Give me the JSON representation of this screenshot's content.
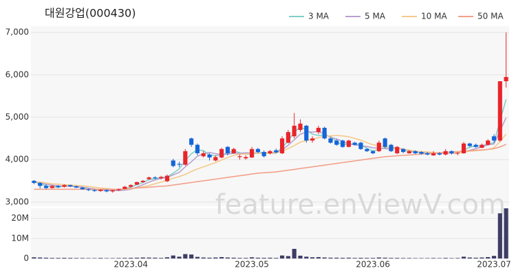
{
  "chart_data": {
    "type": "candlestick",
    "title": "대원강업(000430)",
    "watermark": "feature.enViewV.com",
    "legend": "top-right",
    "grid": true,
    "up_color": "#e8252b",
    "down_color": "#1565d8",
    "volume_color": "#3d3d66",
    "categories": [
      null,
      null,
      null,
      null,
      null,
      null,
      null,
      null,
      null,
      null,
      null,
      null,
      null,
      null,
      null,
      null,
      "2023.04",
      null,
      null,
      null,
      null,
      null,
      null,
      null,
      null,
      null,
      null,
      null,
      null,
      null,
      null,
      null,
      null,
      null,
      null,
      null,
      "2023.05",
      null,
      null,
      null,
      null,
      null,
      null,
      null,
      null,
      null,
      null,
      null,
      null,
      null,
      null,
      null,
      null,
      null,
      null,
      null,
      "2023.06",
      null,
      null,
      null,
      null,
      null,
      null,
      null,
      null,
      null,
      null,
      null,
      null,
      null,
      null,
      null,
      null,
      null,
      null,
      null,
      "2023.07",
      null,
      null
    ],
    "open": [
      3500,
      3450,
      3380,
      3330,
      3380,
      3360,
      3400,
      3370,
      3340,
      3300,
      3280,
      3260,
      3280,
      3250,
      3280,
      3310,
      3360,
      3410,
      3470,
      3540,
      3580,
      3560,
      3490,
      3980,
      3900,
      3880,
      4500,
      4350,
      4080,
      4120,
      3980,
      4050,
      4300,
      4150,
      4060,
      4030,
      4050,
      4250,
      4180,
      4150,
      4220,
      4150,
      4400,
      4550,
      4700,
      4800,
      4450,
      4650,
      4750,
      4500,
      4450,
      4450,
      4300,
      4400,
      4400,
      4250,
      4200,
      4200,
      4500,
      4350,
      4150,
      4250,
      4150,
      4200,
      4180,
      4150,
      4100,
      4150,
      4120,
      4200,
      4150,
      4150,
      4380,
      4350,
      4280,
      4350,
      4550,
      4450,
      5850
    ],
    "high": [
      3520,
      3470,
      3420,
      3400,
      3400,
      3420,
      3410,
      3390,
      3360,
      3320,
      3300,
      3300,
      3300,
      3290,
      3320,
      3380,
      3420,
      3480,
      3520,
      3600,
      3610,
      3620,
      3650,
      4020,
      3950,
      4250,
      4520,
      4380,
      4200,
      4150,
      4100,
      4280,
      4320,
      4280,
      4120,
      4100,
      4300,
      4280,
      4220,
      4230,
      4260,
      4550,
      4700,
      5100,
      4950,
      4820,
      4550,
      4800,
      4780,
      4520,
      4480,
      4470,
      4470,
      4420,
      4420,
      4270,
      4220,
      4450,
      4520,
      4370,
      4320,
      4270,
      4230,
      4220,
      4200,
      4180,
      4200,
      4180,
      4250,
      4220,
      4180,
      4420,
      4400,
      4380,
      4380,
      4480,
      4600,
      5850,
      7000
    ],
    "low": [
      3420,
      3320,
      3300,
      3320,
      3330,
      3340,
      3350,
      3330,
      3290,
      3260,
      3240,
      3240,
      3230,
      3220,
      3260,
      3300,
      3340,
      3400,
      3450,
      3520,
      3540,
      3530,
      3470,
      3820,
      3820,
      3860,
      4300,
      4100,
      4050,
      3980,
      3960,
      4030,
      4100,
      4140,
      4000,
      4000,
      4040,
      4150,
      4050,
      4120,
      4150,
      4130,
      4380,
      4500,
      4650,
      4400,
      4400,
      4600,
      4480,
      4380,
      4330,
      4280,
      4290,
      4330,
      4230,
      4180,
      4130,
      4180,
      4280,
      4180,
      4130,
      4150,
      4140,
      4130,
      4120,
      4100,
      4090,
      4100,
      4100,
      4120,
      4100,
      4140,
      4300,
      4280,
      4270,
      4330,
      4400,
      4420,
      5700
    ],
    "close": [
      3450,
      3380,
      3330,
      3380,
      3350,
      3400,
      3370,
      3340,
      3300,
      3280,
      3260,
      3290,
      3250,
      3280,
      3300,
      3360,
      3400,
      3470,
      3500,
      3580,
      3560,
      3590,
      3620,
      3850,
      3880,
      4200,
      4350,
      4150,
      4150,
      4050,
      4060,
      4250,
      4150,
      4250,
      4080,
      4060,
      4250,
      4180,
      4080,
      4200,
      4170,
      4500,
      4650,
      4800,
      4850,
      4450,
      4500,
      4750,
      4500,
      4400,
      4350,
      4300,
      4450,
      4350,
      4250,
      4200,
      4150,
      4400,
      4300,
      4200,
      4300,
      4180,
      4200,
      4150,
      4140,
      4120,
      4150,
      4120,
      4200,
      4150,
      4160,
      4380,
      4320,
      4300,
      4350,
      4450,
      4450,
      5850,
      5950
    ],
    "volume": [
      600000,
      500000,
      400000,
      300000,
      300000,
      350000,
      300000,
      250000,
      250000,
      200000,
      200000,
      300000,
      200000,
      200000,
      250000,
      300000,
      350000,
      400000,
      500000,
      450000,
      400000,
      300000,
      600000,
      1500000,
      900000,
      2200000,
      2000000,
      800000,
      500000,
      400000,
      500000,
      700000,
      500000,
      400000,
      300000,
      300000,
      600000,
      400000,
      350000,
      400000,
      300000,
      1500000,
      1200000,
      4800000,
      1400000,
      900000,
      600000,
      700000,
      500000,
      400000,
      400000,
      350000,
      400000,
      300000,
      350000,
      300000,
      300000,
      500000,
      400000,
      300000,
      300000,
      250000,
      250000,
      200000,
      200000,
      200000,
      250000,
      200000,
      300000,
      200000,
      250000,
      900000,
      500000,
      400000,
      500000,
      700000,
      1300000,
      22500000,
      25000000
    ],
    "series": [
      {
        "name": "3 MA",
        "color": "#7fd0c7",
        "values": [
          3480,
          3430,
          3380,
          3360,
          3350,
          3380,
          3370,
          3370,
          3340,
          3310,
          3280,
          3280,
          3270,
          3270,
          3280,
          3310,
          3350,
          3410,
          3460,
          3530,
          3550,
          3580,
          3590,
          3680,
          3780,
          3980,
          4140,
          4230,
          4210,
          4110,
          4090,
          4120,
          4150,
          4210,
          4160,
          4130,
          4130,
          4160,
          4170,
          4150,
          4150,
          4290,
          4440,
          4650,
          4770,
          4700,
          4600,
          4570,
          4580,
          4550,
          4420,
          4350,
          4370,
          4370,
          4350,
          4270,
          4200,
          4250,
          4280,
          4300,
          4270,
          4230,
          4190,
          4180,
          4160,
          4140,
          4140,
          4160,
          4160,
          4170,
          4160,
          4230,
          4290,
          4330,
          4320,
          4370,
          4400,
          4920,
          5420
        ]
      },
      {
        "name": "5 MA",
        "color": "#b7a0cf",
        "values": [
          3480,
          3450,
          3420,
          3400,
          3380,
          3370,
          3370,
          3360,
          3350,
          3330,
          3310,
          3290,
          3280,
          3270,
          3270,
          3280,
          3300,
          3350,
          3410,
          3470,
          3520,
          3560,
          3580,
          3640,
          3700,
          3830,
          3950,
          4080,
          4140,
          4170,
          4140,
          4120,
          4130,
          4150,
          4150,
          4160,
          4160,
          4160,
          4140,
          4160,
          4170,
          4230,
          4340,
          4470,
          4600,
          4650,
          4650,
          4660,
          4610,
          4520,
          4490,
          4430,
          4370,
          4350,
          4330,
          4310,
          4280,
          4270,
          4260,
          4250,
          4270,
          4250,
          4220,
          4200,
          4180,
          4170,
          4150,
          4150,
          4150,
          4150,
          4150,
          4190,
          4220,
          4260,
          4300,
          4350,
          4370,
          4680,
          4990
        ]
      },
      {
        "name": "10 MA",
        "color": "#f5c98a",
        "values": [
          3480,
          3470,
          3450,
          3430,
          3420,
          3410,
          3400,
          3390,
          3380,
          3370,
          3350,
          3330,
          3320,
          3300,
          3300,
          3300,
          3310,
          3330,
          3360,
          3390,
          3430,
          3470,
          3510,
          3560,
          3600,
          3650,
          3720,
          3780,
          3830,
          3880,
          3930,
          3990,
          4050,
          4100,
          4130,
          4130,
          4150,
          4150,
          4150,
          4150,
          4160,
          4200,
          4260,
          4330,
          4410,
          4450,
          4480,
          4520,
          4550,
          4560,
          4570,
          4560,
          4540,
          4500,
          4460,
          4400,
          4350,
          4330,
          4300,
          4280,
          4260,
          4240,
          4220,
          4200,
          4190,
          4180,
          4170,
          4160,
          4160,
          4160,
          4160,
          4180,
          4200,
          4210,
          4220,
          4240,
          4280,
          4430,
          4600
        ]
      },
      {
        "name": "50 MA",
        "color": "#f4a08a",
        "values": [
          3300,
          3300,
          3300,
          3300,
          3300,
          3300,
          3300,
          3300,
          3300,
          3300,
          3300,
          3300,
          3300,
          3300,
          3300,
          3310,
          3320,
          3330,
          3340,
          3350,
          3360,
          3370,
          3380,
          3400,
          3420,
          3440,
          3460,
          3480,
          3500,
          3520,
          3540,
          3560,
          3580,
          3600,
          3620,
          3640,
          3660,
          3680,
          3690,
          3700,
          3710,
          3730,
          3750,
          3770,
          3790,
          3810,
          3830,
          3850,
          3870,
          3890,
          3910,
          3930,
          3950,
          3970,
          3990,
          4010,
          4030,
          4050,
          4070,
          4080,
          4090,
          4100,
          4110,
          4120,
          4130,
          4140,
          4150,
          4160,
          4170,
          4180,
          4190,
          4200,
          4210,
          4220,
          4230,
          4240,
          4260,
          4300,
          4360
        ]
      }
    ],
    "ylim": [
      2900,
      7150
    ],
    "yticks": [
      {
        "value": 3000,
        "label": "3,000"
      },
      {
        "value": 4000,
        "label": "4,000"
      },
      {
        "value": 5000,
        "label": "5,000"
      },
      {
        "value": 6000,
        "label": "6,000"
      },
      {
        "value": 7000,
        "label": "7,000"
      }
    ],
    "volume_ylim": [
      0,
      25000000
    ],
    "volume_yticks": [
      0,
      {
        "value": 10000000,
        "label": "10M"
      },
      {
        "value": 20000000,
        "label": "20M"
      }
    ]
  }
}
